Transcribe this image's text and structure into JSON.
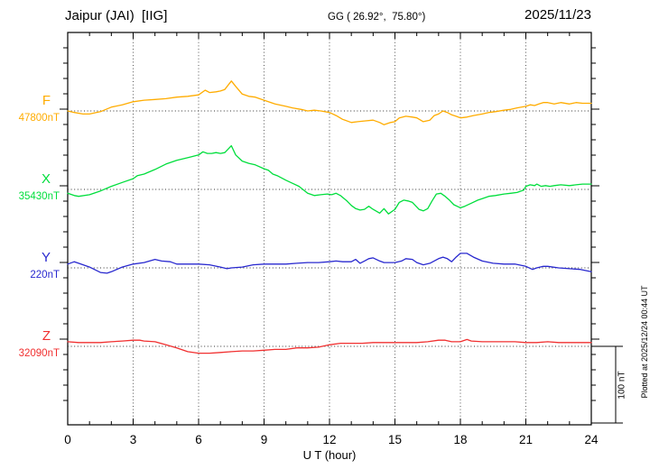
{
  "header": {
    "station": "Jaipur (JAI)  [IIG]",
    "coords": "GG ( 26.92°,  75.80°)",
    "date": "2025/11/23"
  },
  "footer": {
    "plotted_at": "Plotted at 2025/12/24 00:44 UT"
  },
  "chart_data": {
    "type": "line",
    "title": "Jaipur (JAI)  [IIG]",
    "xlabel": "U T (hour)",
    "x_range": [
      0,
      24
    ],
    "x_ticks": [
      0,
      3,
      6,
      9,
      12,
      15,
      18,
      21,
      24
    ],
    "x_minor_step_hours": 1,
    "y_tick_unit_nT": 20,
    "grid": "dotted vertical every 3h, dotted horizontal at each series baseline",
    "legend_position": "left of axis, one colored label per series",
    "scale_bar": {
      "label": "100 nT",
      "nT": 100
    },
    "series": [
      {
        "name": "F",
        "baseline_label": "47800nT",
        "baseline_nT": 47800,
        "color": "#FFAC00",
        "points": [
          [
            0,
            0
          ],
          [
            0.3,
            -2
          ],
          [
            0.7,
            -4
          ],
          [
            1,
            -4
          ],
          [
            1.5,
            -1
          ],
          [
            2,
            5
          ],
          [
            2.5,
            8
          ],
          [
            3,
            12
          ],
          [
            3.5,
            14
          ],
          [
            4,
            15
          ],
          [
            4.5,
            16
          ],
          [
            5,
            18
          ],
          [
            5.5,
            19
          ],
          [
            6,
            21
          ],
          [
            6.3,
            27
          ],
          [
            6.5,
            24
          ],
          [
            6.8,
            25
          ],
          [
            7,
            26
          ],
          [
            7.2,
            28
          ],
          [
            7.5,
            39
          ],
          [
            7.7,
            32
          ],
          [
            8,
            22
          ],
          [
            8.3,
            19
          ],
          [
            8.6,
            18
          ],
          [
            9,
            14
          ],
          [
            9.5,
            9
          ],
          [
            10,
            6
          ],
          [
            10.3,
            4
          ],
          [
            10.7,
            2
          ],
          [
            11,
            0
          ],
          [
            11.3,
            1
          ],
          [
            11.6,
            0
          ],
          [
            12,
            -2
          ],
          [
            12.3,
            -6
          ],
          [
            12.6,
            -11
          ],
          [
            13,
            -15
          ],
          [
            13.3,
            -14
          ],
          [
            13.6,
            -13
          ],
          [
            14,
            -12
          ],
          [
            14.3,
            -15
          ],
          [
            14.5,
            -18
          ],
          [
            14.8,
            -15
          ],
          [
            15,
            -14
          ],
          [
            15.2,
            -9
          ],
          [
            15.5,
            -7
          ],
          [
            15.8,
            -8
          ],
          [
            16,
            -9
          ],
          [
            16.3,
            -14
          ],
          [
            16.6,
            -12
          ],
          [
            16.8,
            -6
          ],
          [
            17,
            -4
          ],
          [
            17.2,
            0
          ],
          [
            17.4,
            -2
          ],
          [
            17.6,
            -5
          ],
          [
            17.8,
            -7
          ],
          [
            18,
            -9
          ],
          [
            18.3,
            -8
          ],
          [
            18.6,
            -6
          ],
          [
            19,
            -4
          ],
          [
            19.3,
            -2
          ],
          [
            19.6,
            -1
          ],
          [
            20,
            1
          ],
          [
            20.3,
            2
          ],
          [
            20.6,
            4
          ],
          [
            21,
            6
          ],
          [
            21.2,
            8
          ],
          [
            21.4,
            7
          ],
          [
            21.6,
            9
          ],
          [
            21.8,
            11
          ],
          [
            22,
            11
          ],
          [
            22.3,
            9
          ],
          [
            22.6,
            11
          ],
          [
            23,
            9
          ],
          [
            23.3,
            11
          ],
          [
            23.6,
            10
          ],
          [
            24,
            10
          ]
        ]
      },
      {
        "name": "X",
        "baseline_label": "35430nT",
        "baseline_nT": 35430,
        "color": "#00DE3C",
        "points": [
          [
            0,
            -5
          ],
          [
            0.3,
            -8
          ],
          [
            0.5,
            -9
          ],
          [
            1,
            -7
          ],
          [
            1.5,
            -2
          ],
          [
            2,
            4
          ],
          [
            2.5,
            9
          ],
          [
            3,
            14
          ],
          [
            3.2,
            18
          ],
          [
            3.5,
            20
          ],
          [
            4,
            26
          ],
          [
            4.5,
            33
          ],
          [
            5,
            38
          ],
          [
            5.3,
            40
          ],
          [
            5.6,
            42
          ],
          [
            6,
            45
          ],
          [
            6.2,
            49
          ],
          [
            6.4,
            47
          ],
          [
            6.6,
            47
          ],
          [
            6.8,
            48
          ],
          [
            7,
            47
          ],
          [
            7.2,
            48
          ],
          [
            7.5,
            57
          ],
          [
            7.7,
            45
          ],
          [
            8,
            37
          ],
          [
            8.3,
            34
          ],
          [
            8.6,
            32
          ],
          [
            9,
            27
          ],
          [
            9.2,
            25
          ],
          [
            9.4,
            20
          ],
          [
            9.6,
            18
          ],
          [
            10,
            12
          ],
          [
            10.3,
            8
          ],
          [
            10.6,
            4
          ],
          [
            11,
            -5
          ],
          [
            11.3,
            -8
          ],
          [
            11.6,
            -7
          ],
          [
            11.9,
            -6
          ],
          [
            12.1,
            -7
          ],
          [
            12.3,
            -5
          ],
          [
            12.5,
            -8
          ],
          [
            12.8,
            -15
          ],
          [
            13,
            -21
          ],
          [
            13.2,
            -25
          ],
          [
            13.4,
            -27
          ],
          [
            13.6,
            -26
          ],
          [
            13.8,
            -22
          ],
          [
            14,
            -26
          ],
          [
            14.3,
            -31
          ],
          [
            14.5,
            -25
          ],
          [
            14.7,
            -32
          ],
          [
            15,
            -26
          ],
          [
            15.2,
            -17
          ],
          [
            15.4,
            -14
          ],
          [
            15.6,
            -15
          ],
          [
            15.8,
            -17
          ],
          [
            16.1,
            -26
          ],
          [
            16.3,
            -28
          ],
          [
            16.5,
            -25
          ],
          [
            16.7,
            -15
          ],
          [
            16.9,
            -6
          ],
          [
            17.1,
            -5
          ],
          [
            17.3,
            -9
          ],
          [
            17.5,
            -14
          ],
          [
            17.7,
            -20
          ],
          [
            18,
            -24
          ],
          [
            18.2,
            -22
          ],
          [
            18.5,
            -18
          ],
          [
            18.8,
            -14
          ],
          [
            19,
            -12
          ],
          [
            19.3,
            -9
          ],
          [
            19.6,
            -8
          ],
          [
            20,
            -6
          ],
          [
            20.3,
            -5
          ],
          [
            20.6,
            -4
          ],
          [
            20.9,
            -1
          ],
          [
            21,
            4
          ],
          [
            21.2,
            6
          ],
          [
            21.4,
            5
          ],
          [
            21.5,
            7
          ],
          [
            21.7,
            4
          ],
          [
            21.9,
            5
          ],
          [
            22.1,
            4
          ],
          [
            22.3,
            5
          ],
          [
            22.6,
            6
          ],
          [
            23,
            5
          ],
          [
            23.3,
            6
          ],
          [
            23.6,
            7
          ],
          [
            24,
            7
          ]
        ]
      },
      {
        "name": "Y",
        "baseline_label": "220nT",
        "baseline_nT": 220,
        "color": "#2828CF",
        "points": [
          [
            0,
            5
          ],
          [
            0.3,
            8
          ],
          [
            0.5,
            6
          ],
          [
            1,
            1
          ],
          [
            1.5,
            -6
          ],
          [
            1.8,
            -7
          ],
          [
            2,
            -5
          ],
          [
            2.5,
            1
          ],
          [
            3,
            5
          ],
          [
            3.5,
            7
          ],
          [
            4,
            11
          ],
          [
            4.3,
            9
          ],
          [
            4.7,
            8
          ],
          [
            5,
            5
          ],
          [
            5.5,
            5
          ],
          [
            6,
            5
          ],
          [
            6.5,
            4
          ],
          [
            7,
            1
          ],
          [
            7.3,
            -1
          ],
          [
            7.5,
            0
          ],
          [
            8,
            1
          ],
          [
            8.5,
            4
          ],
          [
            9,
            5
          ],
          [
            9.5,
            5
          ],
          [
            10,
            5
          ],
          [
            10.5,
            6
          ],
          [
            11,
            7
          ],
          [
            11.5,
            7
          ],
          [
            12,
            8
          ],
          [
            12.3,
            9
          ],
          [
            12.6,
            8
          ],
          [
            13,
            8
          ],
          [
            13.2,
            11
          ],
          [
            13.4,
            6
          ],
          [
            13.6,
            9
          ],
          [
            13.8,
            12
          ],
          [
            14,
            13
          ],
          [
            14.3,
            9
          ],
          [
            14.5,
            7
          ],
          [
            15,
            7
          ],
          [
            15.3,
            9
          ],
          [
            15.5,
            12
          ],
          [
            15.8,
            11
          ],
          [
            16,
            7
          ],
          [
            16.3,
            4
          ],
          [
            16.6,
            6
          ],
          [
            17,
            12
          ],
          [
            17.2,
            14
          ],
          [
            17.4,
            12
          ],
          [
            17.6,
            8
          ],
          [
            17.8,
            14
          ],
          [
            18,
            19
          ],
          [
            18.3,
            19
          ],
          [
            18.6,
            14
          ],
          [
            19,
            9
          ],
          [
            19.5,
            6
          ],
          [
            20,
            5
          ],
          [
            20.5,
            5
          ],
          [
            21,
            2
          ],
          [
            21.3,
            -2
          ],
          [
            21.5,
            0
          ],
          [
            21.8,
            2
          ],
          [
            22,
            2
          ],
          [
            22.5,
            0
          ],
          [
            23,
            -1
          ],
          [
            23.5,
            -2
          ],
          [
            24,
            -5
          ]
        ]
      },
      {
        "name": "Z",
        "baseline_label": "32090nT",
        "baseline_nT": 32090,
        "color": "#F13030",
        "points": [
          [
            0,
            6
          ],
          [
            0.5,
            5
          ],
          [
            1,
            5
          ],
          [
            1.5,
            5
          ],
          [
            2,
            6
          ],
          [
            2.5,
            7
          ],
          [
            3,
            8
          ],
          [
            3.3,
            8
          ],
          [
            3.5,
            7
          ],
          [
            4,
            6
          ],
          [
            4.5,
            2
          ],
          [
            5,
            -2
          ],
          [
            5.5,
            -7
          ],
          [
            6,
            -9
          ],
          [
            6.5,
            -9
          ],
          [
            7,
            -8
          ],
          [
            7.5,
            -7
          ],
          [
            8,
            -6
          ],
          [
            8.5,
            -6
          ],
          [
            9,
            -5
          ],
          [
            9.5,
            -4
          ],
          [
            10,
            -4
          ],
          [
            10.5,
            -2
          ],
          [
            11,
            -2
          ],
          [
            11.5,
            -1
          ],
          [
            12,
            2
          ],
          [
            12.5,
            4
          ],
          [
            13,
            4
          ],
          [
            13.5,
            4
          ],
          [
            14,
            5
          ],
          [
            14.5,
            5
          ],
          [
            15,
            5
          ],
          [
            15.5,
            5
          ],
          [
            16,
            5
          ],
          [
            16.5,
            6
          ],
          [
            17,
            8
          ],
          [
            17.3,
            8
          ],
          [
            17.6,
            6
          ],
          [
            18,
            6
          ],
          [
            18.3,
            9
          ],
          [
            18.5,
            7
          ],
          [
            19,
            6
          ],
          [
            19.5,
            6
          ],
          [
            20,
            6
          ],
          [
            20.5,
            6
          ],
          [
            21,
            5
          ],
          [
            21.5,
            5
          ],
          [
            22,
            6
          ],
          [
            22.5,
            5
          ],
          [
            23,
            5
          ],
          [
            23.5,
            5
          ],
          [
            24,
            5
          ]
        ]
      }
    ]
  }
}
